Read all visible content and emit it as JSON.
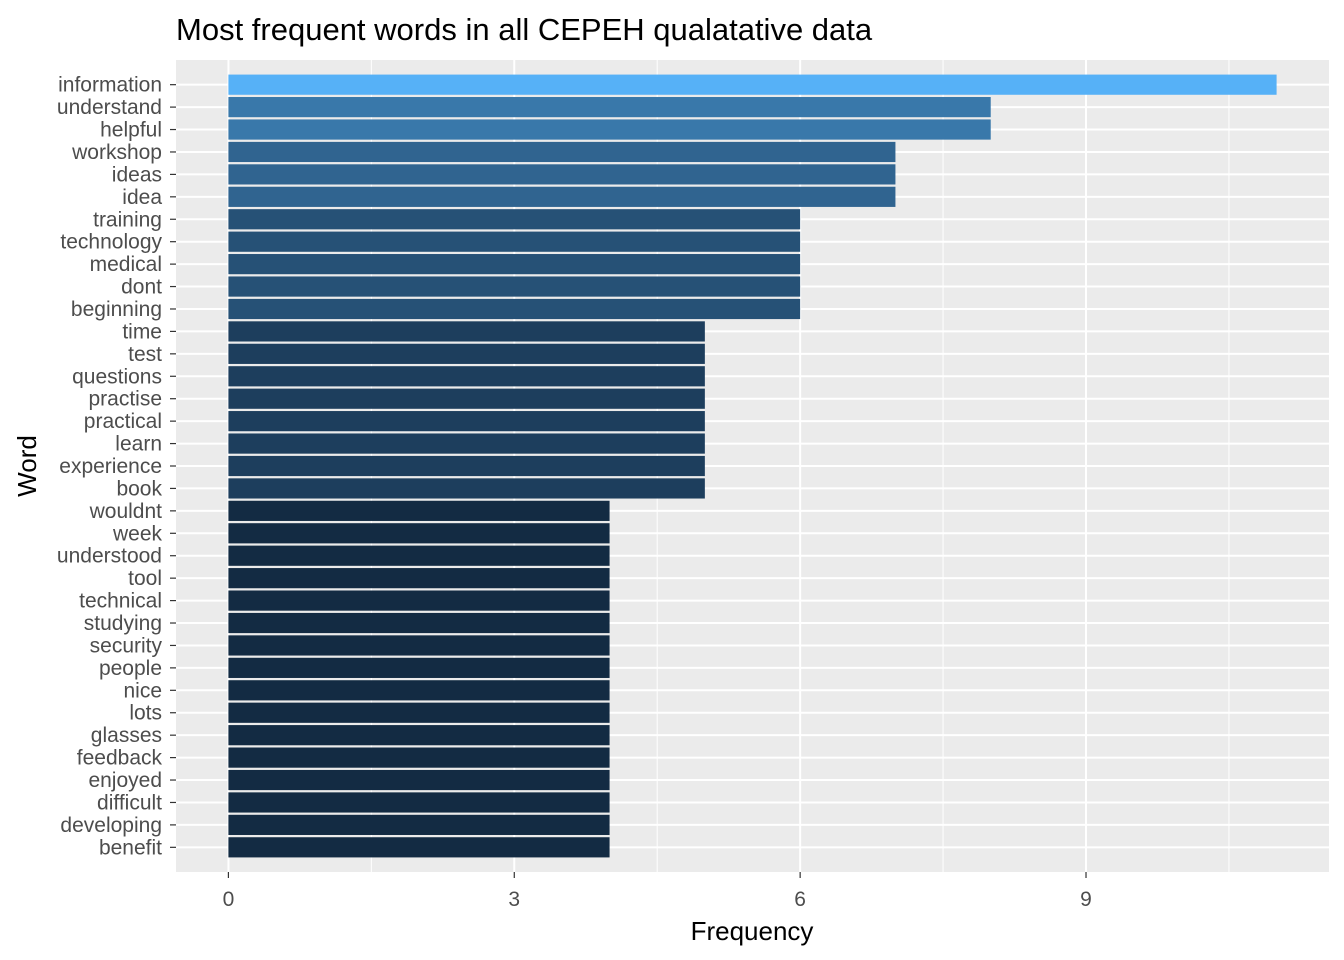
{
  "chart_data": {
    "type": "bar",
    "orientation": "horizontal",
    "title": "Most frequent words in all CEPEH qualatative data",
    "xlabel": "Frequency",
    "ylabel": "Word",
    "xlim": [
      -0.55,
      11.55
    ],
    "xticks": [
      "0",
      "3",
      "6",
      "9"
    ],
    "grid": true,
    "legend": "none",
    "fill_low": "#132B43",
    "fill_high": "#56B1F7",
    "categories": [
      "information",
      "understand",
      "helpful",
      "workshop",
      "ideas",
      "idea",
      "training",
      "technology",
      "medical",
      "dont",
      "beginning",
      "time",
      "test",
      "questions",
      "practise",
      "practical",
      "learn",
      "experience",
      "book",
      "wouldnt",
      "week",
      "understood",
      "tool",
      "technical",
      "studying",
      "security",
      "people",
      "nice",
      "lots",
      "glasses",
      "feedback",
      "enjoyed",
      "difficult",
      "developing",
      "benefit"
    ],
    "values": [
      11,
      8,
      8,
      7,
      7,
      7,
      6,
      6,
      6,
      6,
      6,
      5,
      5,
      5,
      5,
      5,
      5,
      5,
      5,
      4,
      4,
      4,
      4,
      4,
      4,
      4,
      4,
      4,
      4,
      4,
      4,
      4,
      4,
      4,
      4
    ]
  }
}
